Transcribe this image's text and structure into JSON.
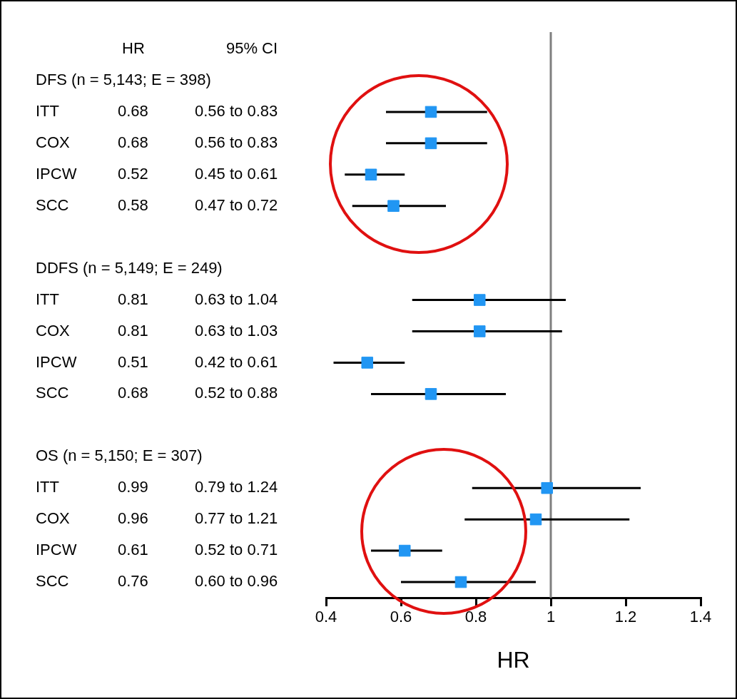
{
  "chart_data": {
    "type": "scatter",
    "orientation": "horizontal",
    "categories": [
      "DFS (n = 5,143; E = 398)",
      "ITT",
      "COX",
      "IPCW",
      "SCC",
      null,
      "DDFS (n = 5,149; E = 249)",
      "ITT",
      "COX",
      "IPCW",
      "SCC",
      null,
      "OS (n = 5,150; E = 307)",
      "ITT",
      "COX",
      "IPCW",
      "SCC"
    ],
    "values": [
      null,
      0.68,
      0.68,
      0.52,
      0.58,
      null,
      null,
      0.81,
      0.81,
      0.51,
      0.68,
      null,
      null,
      0.99,
      0.96,
      0.61,
      0.76
    ],
    "errors": [
      null,
      [
        0.56,
        0.83
      ],
      [
        0.56,
        0.83
      ],
      [
        0.45,
        0.61
      ],
      [
        0.47,
        0.72
      ],
      null,
      null,
      [
        0.63,
        1.04
      ],
      [
        0.63,
        1.03
      ],
      [
        0.42,
        0.61
      ],
      [
        0.52,
        0.88
      ],
      null,
      null,
      [
        0.79,
        1.24
      ],
      [
        0.77,
        1.21
      ],
      [
        0.52,
        0.71
      ],
      [
        0.6,
        0.96
      ]
    ],
    "value_labels": [
      null,
      "0.68",
      "0.68",
      "0.52",
      "0.58",
      null,
      null,
      "0.81",
      "0.81",
      "0.51",
      "0.68",
      null,
      null,
      "0.99",
      "0.96",
      "0.61",
      "0.76"
    ],
    "color": "#2196f3",
    "marker": "square",
    "xlim": [
      0.4,
      1.4
    ],
    "xticks": [
      0.4,
      0.6,
      0.8,
      1,
      1.2,
      1.4
    ],
    "xlabel": "HR",
    "annotations": [
      "HR",
      "95% CI",
      "0.56 to 0.83",
      "0.56 to 0.83",
      "0.45 to 0.61",
      "0.47 to 0.72",
      "0.63 to 1.04",
      "0.63 to 1.03",
      "0.42 to 0.61",
      "0.52 to 0.88",
      "0.79 to 1.24",
      "0.77 to 1.21",
      "0.52 to 0.71",
      "0.60 to 0.96"
    ],
    "ref_lines": [
      {
        "axis": "x",
        "value": 1,
        "color": "#808080"
      }
    ],
    "grid": false,
    "legend": false
  }
}
